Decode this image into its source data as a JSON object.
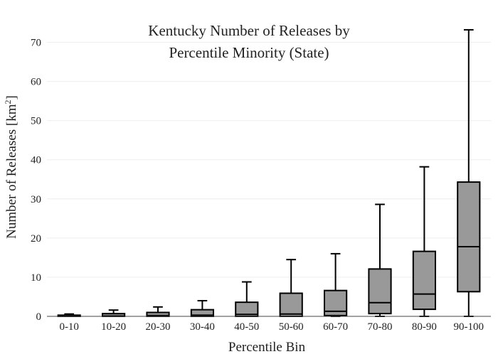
{
  "chart_data": {
    "type": "box",
    "title_line1": "Kentucky Number of Releases by",
    "title_line2": "Percentile Minority (State)",
    "xlabel": "Percentile Bin",
    "ylabel_main": "Number of Releases  [km",
    "ylabel_sup": "2",
    "ylabel_end": "]",
    "ylim": [
      0,
      75
    ],
    "yticks": [
      0,
      10,
      20,
      30,
      40,
      50,
      60,
      70
    ],
    "grid": true,
    "box_color": "#999999",
    "categories": [
      "0-10",
      "10-20",
      "20-30",
      "30-40",
      "40-50",
      "50-60",
      "60-70",
      "70-80",
      "80-90",
      "90-100"
    ],
    "boxes": [
      {
        "min": 0,
        "q1": 0,
        "median": 0.1,
        "q3": 0.3,
        "max": 0.6
      },
      {
        "min": 0,
        "q1": 0,
        "median": 0.1,
        "q3": 0.7,
        "max": 1.6
      },
      {
        "min": 0,
        "q1": 0,
        "median": 0.2,
        "q3": 1.0,
        "max": 2.4
      },
      {
        "min": 0,
        "q1": 0,
        "median": 0.3,
        "q3": 1.7,
        "max": 4.0
      },
      {
        "min": 0,
        "q1": 0,
        "median": 0.5,
        "q3": 3.6,
        "max": 8.8
      },
      {
        "min": 0,
        "q1": 0,
        "median": 0.6,
        "q3": 5.9,
        "max": 14.5
      },
      {
        "min": 0,
        "q1": 0.2,
        "median": 1.3,
        "q3": 6.6,
        "max": 16.0
      },
      {
        "min": 0,
        "q1": 0.7,
        "median": 3.5,
        "q3": 12.1,
        "max": 28.6
      },
      {
        "min": 0,
        "q1": 1.8,
        "median": 5.7,
        "q3": 16.6,
        "max": 38.2
      },
      {
        "min": 0,
        "q1": 6.3,
        "median": 17.8,
        "q3": 34.3,
        "max": 73.2
      }
    ]
  }
}
